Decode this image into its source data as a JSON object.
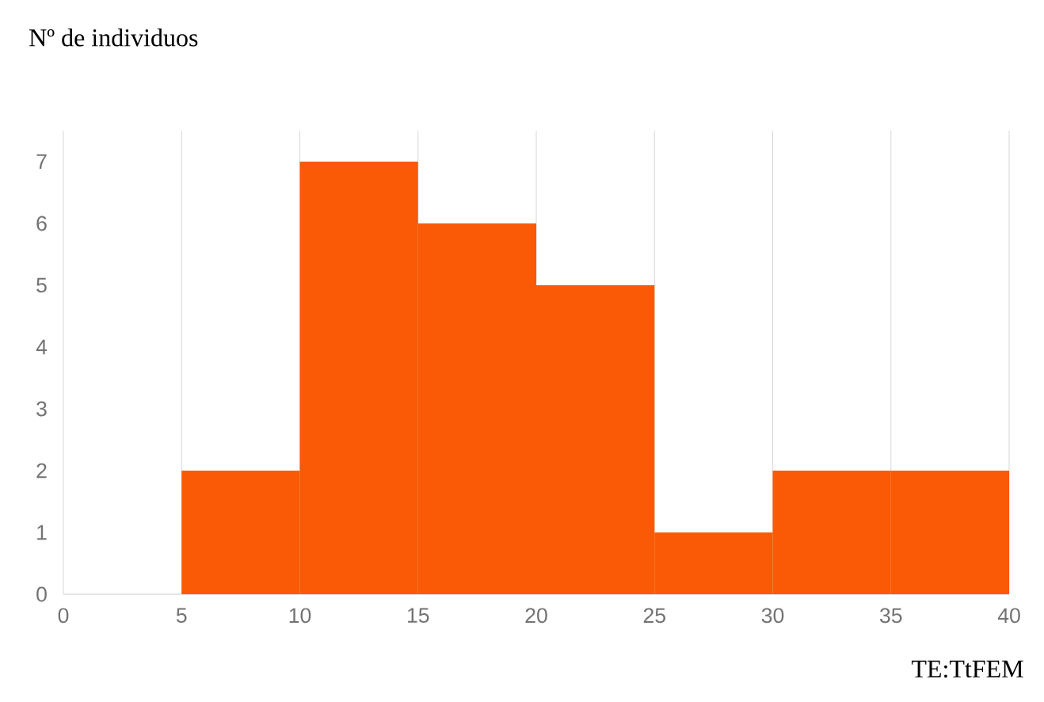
{
  "chart_data": {
    "type": "histogram",
    "xlabel": "TE:TtFEM",
    "ylabel": "Nº de individuos",
    "bins": [
      0,
      5,
      10,
      15,
      20,
      25,
      30,
      35,
      40
    ],
    "values": [
      0,
      2,
      7,
      6,
      5,
      1,
      2,
      2
    ],
    "color": "#fa5a05",
    "xlim": [
      0,
      40
    ],
    "ylim": [
      0,
      7.5
    ],
    "xticks": [
      0,
      5,
      10,
      15,
      20,
      25,
      30,
      35,
      40
    ],
    "yticks": [
      0,
      1,
      2,
      3,
      4,
      5,
      6,
      7
    ],
    "grid": "x"
  }
}
